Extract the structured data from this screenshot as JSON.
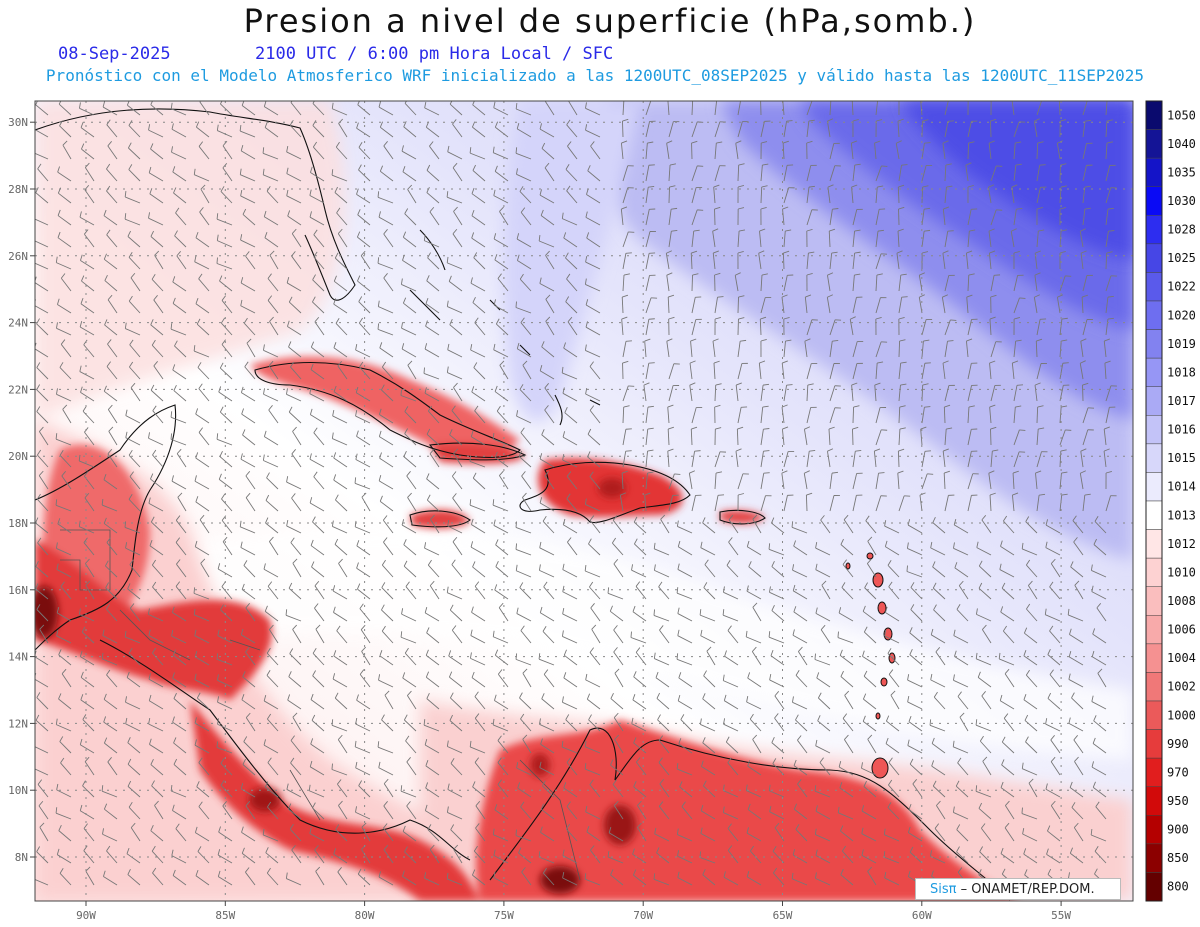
{
  "header": {
    "title": "Presion a nivel de superficie (hPa,somb.)",
    "date": "08-Sep-2025",
    "time": "2100 UTC / 6:00 pm Hora Local / SFC",
    "subtitle": "Pronóstico con el Modelo Atmosferico WRF inicializado a las 1200UTC_08SEP2025 y válido hasta las  1200UTC_11SEP2025"
  },
  "axes": {
    "lon_labels": [
      "90W",
      "85W",
      "80W",
      "75W",
      "70W",
      "65W",
      "60W",
      "55W"
    ],
    "lat_labels": [
      "8N",
      "10N",
      "12N",
      "14N",
      "16N",
      "18N",
      "20N",
      "22N",
      "24N",
      "26N",
      "28N",
      "30N"
    ]
  },
  "colorbar": {
    "levels": [
      "1050",
      "1040",
      "1035",
      "1030",
      "1028",
      "1025",
      "1022",
      "1020",
      "1019",
      "1018",
      "1017",
      "1016",
      "1015",
      "1014",
      "1013",
      "1012",
      "1010",
      "1008",
      "1006",
      "1004",
      "1002",
      "1000",
      "990",
      "970",
      "950",
      "900",
      "850",
      "800"
    ],
    "colors": [
      "#0a0a6e",
      "#141496",
      "#1414c8",
      "#0a0af5",
      "#2d2df0",
      "#4646e6",
      "#5a5aeb",
      "#6e6ef0",
      "#8282f0",
      "#9696f5",
      "#aaaaf5",
      "#c3c3f8",
      "#d7d7fa",
      "#ebebfd",
      "#ffffff",
      "#ffe6e6",
      "#fdd2d2",
      "#fabebe",
      "#f8aaaa",
      "#f59191",
      "#f07878",
      "#eb5a5a",
      "#e63c3c",
      "#e11e1e",
      "#d20a0a",
      "#b40000",
      "#8c0000",
      "#640000"
    ]
  },
  "credit": {
    "brand": "Sisπ",
    "text": " – ONAMET/REP.DOM."
  }
}
